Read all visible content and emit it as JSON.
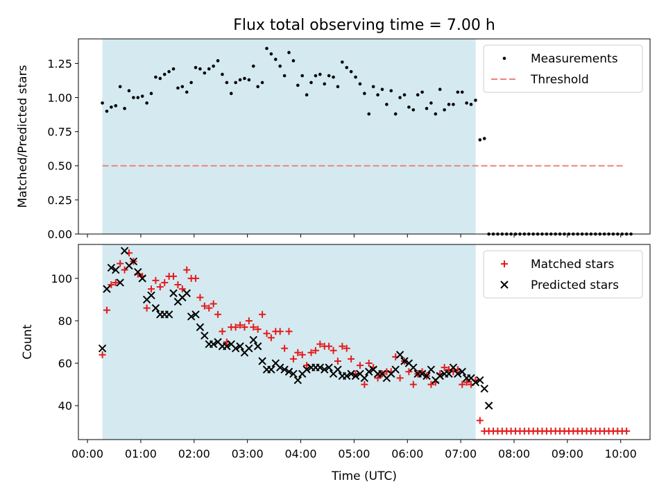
{
  "title": "Flux total observing time = 7.00 h",
  "xlabel": "Time (UTC)",
  "x_tick_labels": [
    "00:00",
    "01:00",
    "02:00",
    "03:00",
    "04:00",
    "05:00",
    "06:00",
    "07:00",
    "08:00",
    "09:00",
    "10:00"
  ],
  "colors": {
    "shade": "#d4eaf0",
    "measurement": "#000000",
    "threshold": "#f08080",
    "matched": "#e41a1c",
    "predicted": "#000000"
  },
  "chart_data": [
    {
      "type": "scatter",
      "ylabel": "Matched/Predicted stars",
      "x_unit": "hours UTC",
      "xlim": [
        -0.17,
        10.55
      ],
      "ylim": [
        0,
        1.43
      ],
      "y_ticks": [
        "0.00",
        "0.25",
        "0.50",
        "0.75",
        "1.00",
        "1.25"
      ],
      "y_tick_values": [
        0,
        0.25,
        0.5,
        0.75,
        1.0,
        1.25
      ],
      "shaded_x": [
        0.28,
        7.28
      ],
      "legend": "upper-right",
      "legend_entries": [
        "Measurements",
        "Threshold"
      ],
      "threshold": {
        "name": "Threshold",
        "y": 0.5,
        "x": [
          0.28,
          10.05
        ]
      },
      "series": [
        {
          "name": "Measurements",
          "x_start": 0.28,
          "x_step": 0.0833,
          "values": [
            0.96,
            0.9,
            0.93,
            0.94,
            1.08,
            0.92,
            1.05,
            1.0,
            1.0,
            1.01,
            0.96,
            1.03,
            1.15,
            1.14,
            1.17,
            1.19,
            1.21,
            1.07,
            1.08,
            1.04,
            1.11,
            1.22,
            1.21,
            1.18,
            1.21,
            1.23,
            1.27,
            1.17,
            1.11,
            1.03,
            1.11,
            1.13,
            1.14,
            1.13,
            1.23,
            1.08,
            1.11,
            1.36,
            1.32,
            1.28,
            1.23,
            1.16,
            1.33,
            1.27,
            1.09,
            1.16,
            1.02,
            1.11,
            1.16,
            1.17,
            1.1,
            1.16,
            1.15,
            1.08,
            1.26,
            1.22,
            1.19,
            1.15,
            1.1,
            1.03,
            0.88,
            1.08,
            1.02,
            1.06,
            0.95,
            1.05,
            0.88,
            1.0,
            1.02,
            0.93,
            0.91,
            1.02,
            1.04,
            0.92,
            0.96,
            0.88,
            1.06,
            0.91,
            0.95,
            0.95,
            1.04,
            1.04,
            0.96,
            0.95,
            0.98,
            0.69,
            0.7,
            0,
            0,
            0,
            0,
            0,
            0,
            0,
            0,
            0,
            0,
            0,
            0,
            0,
            0,
            0,
            0,
            0,
            0,
            0,
            0,
            0,
            0,
            0,
            0,
            0,
            0,
            0,
            0,
            0,
            0,
            0,
            0,
            0
          ]
        }
      ]
    },
    {
      "type": "scatter",
      "ylabel": "Count",
      "x_unit": "hours UTC",
      "xlim": [
        -0.17,
        10.55
      ],
      "ylim": [
        24,
        116
      ],
      "y_ticks": [
        "40",
        "60",
        "80",
        "100"
      ],
      "y_tick_values": [
        40,
        60,
        80,
        100
      ],
      "shaded_x": [
        0.28,
        7.28
      ],
      "legend": "upper-right",
      "legend_entries": [
        "Matched stars",
        "Predicted stars"
      ],
      "series": [
        {
          "name": "Matched stars",
          "marker": "plus",
          "x_start": 0.28,
          "x_step": 0.0833,
          "values": [
            64,
            85,
            97,
            98,
            107,
            104,
            112,
            108,
            102,
            101,
            86,
            95,
            99,
            96,
            98,
            101,
            101,
            97,
            95,
            104,
            100,
            100,
            91,
            87,
            86,
            88,
            83,
            75,
            70,
            77,
            77,
            78,
            77,
            80,
            77,
            76,
            83,
            74,
            72,
            75,
            75,
            67,
            75,
            62,
            65,
            64,
            59,
            65,
            66,
            69,
            68,
            68,
            66,
            61,
            68,
            67,
            62,
            55,
            59,
            50,
            60,
            58,
            53,
            55,
            56,
            56,
            63,
            53,
            61,
            56,
            50,
            55,
            56,
            54,
            50,
            51,
            55,
            58,
            57,
            56,
            57,
            50,
            51,
            50,
            52,
            33,
            28,
            28,
            28,
            28,
            28,
            28,
            28,
            28,
            28,
            28,
            28,
            28,
            28,
            28,
            28,
            28,
            28,
            28,
            28,
            28,
            28,
            28,
            28,
            28,
            28,
            28,
            28,
            28,
            28,
            28,
            28,
            28,
            28
          ]
        },
        {
          "name": "Predicted stars",
          "marker": "x",
          "x_start": 0.28,
          "x_step": 0.0833,
          "values": [
            67,
            95,
            105,
            104,
            98,
            113,
            106,
            108,
            103,
            100,
            90,
            92,
            86,
            83,
            83,
            83,
            93,
            89,
            91,
            93,
            82,
            83,
            77,
            73,
            69,
            69,
            70,
            68,
            68,
            69,
            67,
            68,
            65,
            67,
            71,
            68,
            61,
            57,
            57,
            60,
            58,
            57,
            56,
            55,
            52,
            55,
            57,
            58,
            58,
            58,
            57,
            58,
            55,
            57,
            54,
            54,
            55,
            54,
            55,
            53,
            56,
            57,
            55,
            55,
            53,
            55,
            57,
            64,
            61,
            60,
            58,
            55,
            55,
            54,
            57,
            52,
            54,
            55,
            55,
            58,
            55,
            56,
            53,
            53,
            51,
            52,
            48,
            40
          ]
        }
      ]
    }
  ]
}
